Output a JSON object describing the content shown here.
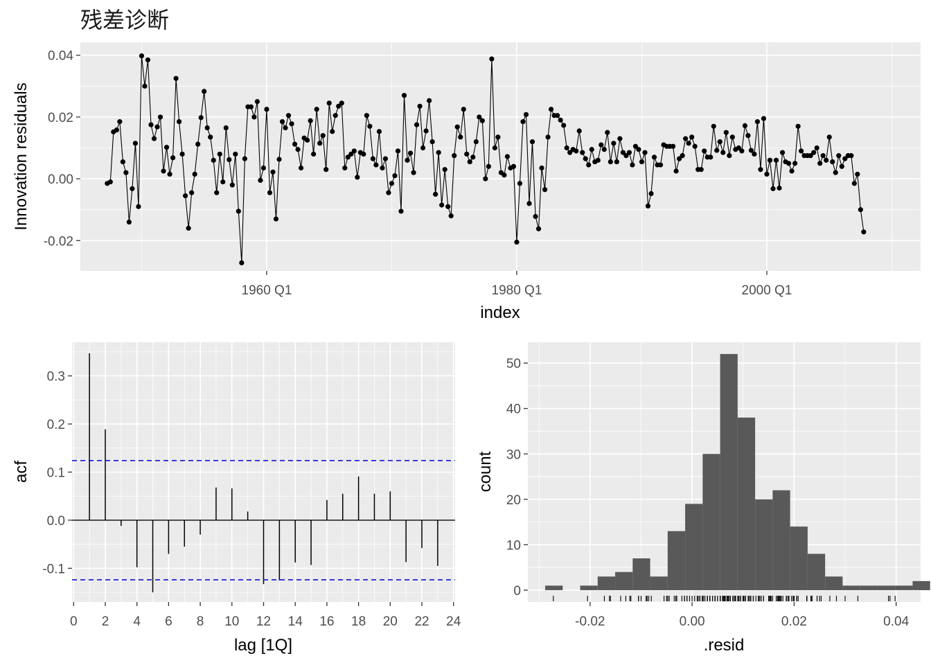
{
  "title": "残差诊断",
  "chart_data": [
    {
      "id": "residuals",
      "type": "line",
      "xlabel": "index",
      "ylabel": "Innovation residuals",
      "x_tick_labels": [
        "1960 Q1",
        "1980 Q1",
        "2000 Q1"
      ],
      "x_tick_values": [
        1960,
        1980,
        2000
      ],
      "y_tick_labels": [
        "-0.02",
        "0.00",
        "0.02",
        "0.04"
      ],
      "y_tick_values": [
        -0.02,
        0.0,
        0.02,
        0.04
      ],
      "xlim": [
        1945.1,
        2012.3
      ],
      "ylim": [
        -0.0298,
        0.0442
      ],
      "grid": true,
      "x_start": 1947.25,
      "x_step": 0.25,
      "values": [
        -0.0015,
        -0.001,
        0.0152,
        0.0158,
        0.0185,
        0.0055,
        0.002,
        -0.014,
        -0.0032,
        0.0115,
        -0.009,
        0.0398,
        0.03,
        0.0385,
        0.0175,
        0.013,
        0.0168,
        0.02,
        0.0025,
        0.0102,
        0.0015,
        0.0068,
        0.0325,
        0.0185,
        0.008,
        -0.0055,
        -0.016,
        -0.0045,
        0.0015,
        0.0112,
        0.0198,
        0.0283,
        0.0165,
        0.0135,
        0.006,
        -0.0045,
        0.008,
        -0.001,
        0.0165,
        0.0062,
        -0.002,
        0.008,
        -0.0105,
        -0.0272,
        0.0065,
        0.0233,
        0.0233,
        0.02,
        0.025,
        -0.0005,
        0.0035,
        0.0225,
        -0.0045,
        0.0022,
        -0.013,
        0.0063,
        0.0185,
        0.0165,
        0.0205,
        0.0178,
        0.0112,
        0.0095,
        0.0035,
        0.0132,
        0.0125,
        0.0188,
        0.008,
        0.0225,
        0.0115,
        0.014,
        0.003,
        0.0245,
        0.0153,
        0.0205,
        0.0235,
        0.0245,
        0.0035,
        0.007,
        0.008,
        0.009,
        0.0005,
        0.0085,
        0.008,
        0.0205,
        0.017,
        0.0065,
        0.0045,
        0.0153,
        0.0035,
        0.0065,
        -0.0045,
        -0.0015,
        0.001,
        0.009,
        -0.0105,
        0.027,
        0.006,
        0.0083,
        0.002,
        0.0175,
        0.0235,
        0.01,
        0.0155,
        0.0253,
        0.012,
        -0.005,
        0.0085,
        -0.0085,
        0.003,
        -0.009,
        -0.012,
        0.0075,
        0.0168,
        0.0135,
        0.0225,
        0.008,
        0.0055,
        0.007,
        0.012,
        0.02,
        0.0188,
        0.0,
        0.004,
        0.0388,
        0.01,
        0.0135,
        0.002,
        0.0012,
        0.0072,
        0.0035,
        0.004,
        -0.0205,
        -0.0015,
        0.0185,
        0.0208,
        -0.008,
        0.012,
        -0.0122,
        -0.0162,
        0.0035,
        -0.0035,
        0.0135,
        0.0225,
        0.0205,
        0.0205,
        0.019,
        0.0173,
        0.01,
        0.0085,
        0.0095,
        0.009,
        0.0155,
        0.0085,
        0.0065,
        0.0045,
        0.0095,
        0.0055,
        0.006,
        0.011,
        0.0095,
        0.015,
        0.0055,
        0.0115,
        0.0055,
        0.013,
        0.0085,
        0.0075,
        0.0085,
        0.0045,
        0.0105,
        0.0095,
        0.0055,
        0.0085,
        -0.0088,
        -0.0048,
        0.007,
        0.0045,
        0.0045,
        0.011,
        0.0105,
        0.0105,
        0.0105,
        0.0025,
        0.0065,
        0.0075,
        0.013,
        0.0115,
        0.0135,
        0.0105,
        0.003,
        0.003,
        0.009,
        0.007,
        0.007,
        0.017,
        0.0092,
        0.012,
        0.0085,
        0.015,
        0.0075,
        0.0135,
        0.0095,
        0.01,
        0.009,
        0.0172,
        0.014,
        0.0092,
        0.008,
        0.0185,
        0.003,
        0.0195,
        0.0015,
        0.006,
        -0.0032,
        0.006,
        -0.003,
        0.0085,
        0.0055,
        0.005,
        0.0025,
        0.005,
        0.017,
        0.009,
        0.0075,
        0.0075,
        0.0075,
        0.0085,
        0.01,
        0.005,
        0.0075,
        0.006,
        0.0135,
        0.0055,
        0.002,
        0.0075,
        0.004,
        0.0065,
        0.0075,
        0.0075,
        -0.0015,
        0.0015,
        -0.01,
        -0.0172
      ]
    },
    {
      "id": "acf",
      "type": "bar",
      "xlabel": "lag [1Q]",
      "ylabel": "acf",
      "x_tick_labels": [
        "0",
        "2",
        "4",
        "6",
        "8",
        "10",
        "12",
        "14",
        "16",
        "18",
        "20",
        "22",
        "24"
      ],
      "y_tick_labels": [
        "-0.1",
        "0.0",
        "0.1",
        "0.2",
        "0.3"
      ],
      "y_tick_values": [
        -0.1,
        0.0,
        0.1,
        0.2,
        0.3
      ],
      "xlim": [
        -0.1,
        24.1
      ],
      "ylim": [
        -0.17,
        0.37
      ],
      "grid": true,
      "lags": [
        1,
        2,
        3,
        4,
        5,
        6,
        7,
        8,
        9,
        10,
        11,
        12,
        13,
        14,
        15,
        16,
        17,
        18,
        19,
        20,
        21,
        22,
        23
      ],
      "values": [
        0.347,
        0.189,
        -0.012,
        -0.098,
        -0.15,
        -0.07,
        -0.055,
        -0.03,
        0.068,
        0.066,
        0.018,
        -0.133,
        -0.125,
        -0.088,
        -0.093,
        0.042,
        0.055,
        0.091,
        0.055,
        0.06,
        -0.087,
        -0.058,
        -0.095
      ],
      "confidence_bound": 0.124,
      "colors": {
        "bound": "#0000cc",
        "spike": "#000000"
      }
    },
    {
      "id": "histogram",
      "type": "bar",
      "xlabel": ".resid",
      "ylabel": "count",
      "x_tick_labels": [
        "-0.02",
        "0.00",
        "0.02",
        "0.04"
      ],
      "x_tick_values": [
        -0.02,
        0.0,
        0.02,
        0.04
      ],
      "y_tick_labels": [
        "0",
        "10",
        "20",
        "30",
        "40",
        "50"
      ],
      "y_tick_values": [
        0,
        10,
        20,
        30,
        40,
        50
      ],
      "xlim": [
        -0.0322,
        0.0448
      ],
      "ylim": [
        -2.6,
        54.6
      ],
      "grid": true,
      "bin_start": -0.0288,
      "bin_width": 0.00343,
      "counts": [
        1,
        0,
        1,
        3,
        4,
        7,
        3,
        13,
        19,
        30,
        52,
        38,
        20,
        22,
        14,
        8,
        3,
        1,
        1,
        1,
        1,
        2
      ],
      "colors": {
        "bar": "#595959"
      }
    }
  ]
}
